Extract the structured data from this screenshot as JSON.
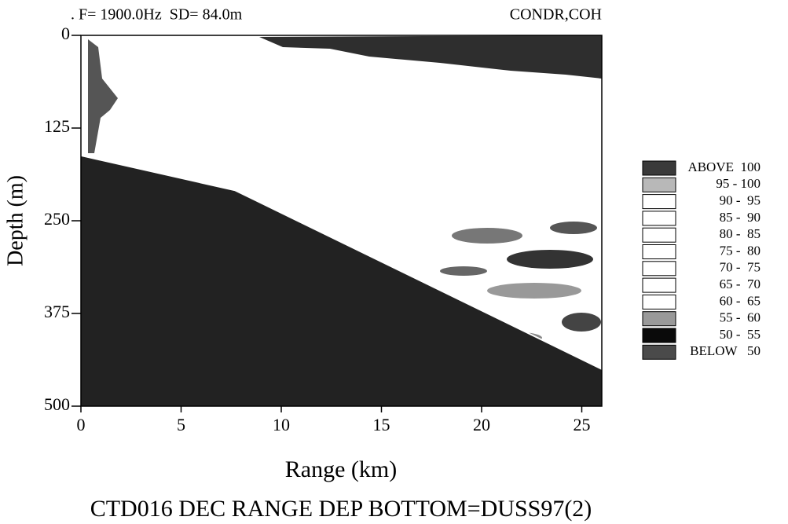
{
  "chart_data": {
    "type": "field",
    "title_left": ". F= 1900.0Hz  SD= 84.0m",
    "title_right": "CONDR,COH",
    "x_label": "Range (km)",
    "y_label": "Depth (m)",
    "caption": "CTD016 DEC RANGE DEP BOTTOM=DUSS97(2)",
    "xlim": [
      0,
      26
    ],
    "ylim": [
      500,
      0
    ],
    "xticks": [
      0,
      5,
      10,
      15,
      20,
      25
    ],
    "yticks": [
      0,
      125,
      250,
      375,
      500
    ],
    "bottom": {
      "x": [
        0,
        7.7,
        26
      ],
      "y": [
        162,
        209,
        450
      ],
      "color": "#222222"
    },
    "legend": [
      {
        "label": "ABOVE  100",
        "color": "#3a3a3a"
      },
      {
        "label": "95 - 100",
        "color": "#b8b8b8"
      },
      {
        "label": "90 -  95",
        "color": "#ffffff"
      },
      {
        "label": "85 -  90",
        "color": "#ffffff"
      },
      {
        "label": "80 -  85",
        "color": "#ffffff"
      },
      {
        "label": "75 -  80",
        "color": "#ffffff"
      },
      {
        "label": "70 -  75",
        "color": "#ffffff"
      },
      {
        "label": "65 -  70",
        "color": "#ffffff"
      },
      {
        "label": "60 -  65",
        "color": "#ffffff"
      },
      {
        "label": "55 -  60",
        "color": "#999999"
      },
      {
        "label": "50 -  55",
        "color": "#0a0a0a"
      },
      {
        "label": "BELOW   50",
        "color": "#4a4a4a"
      }
    ]
  }
}
